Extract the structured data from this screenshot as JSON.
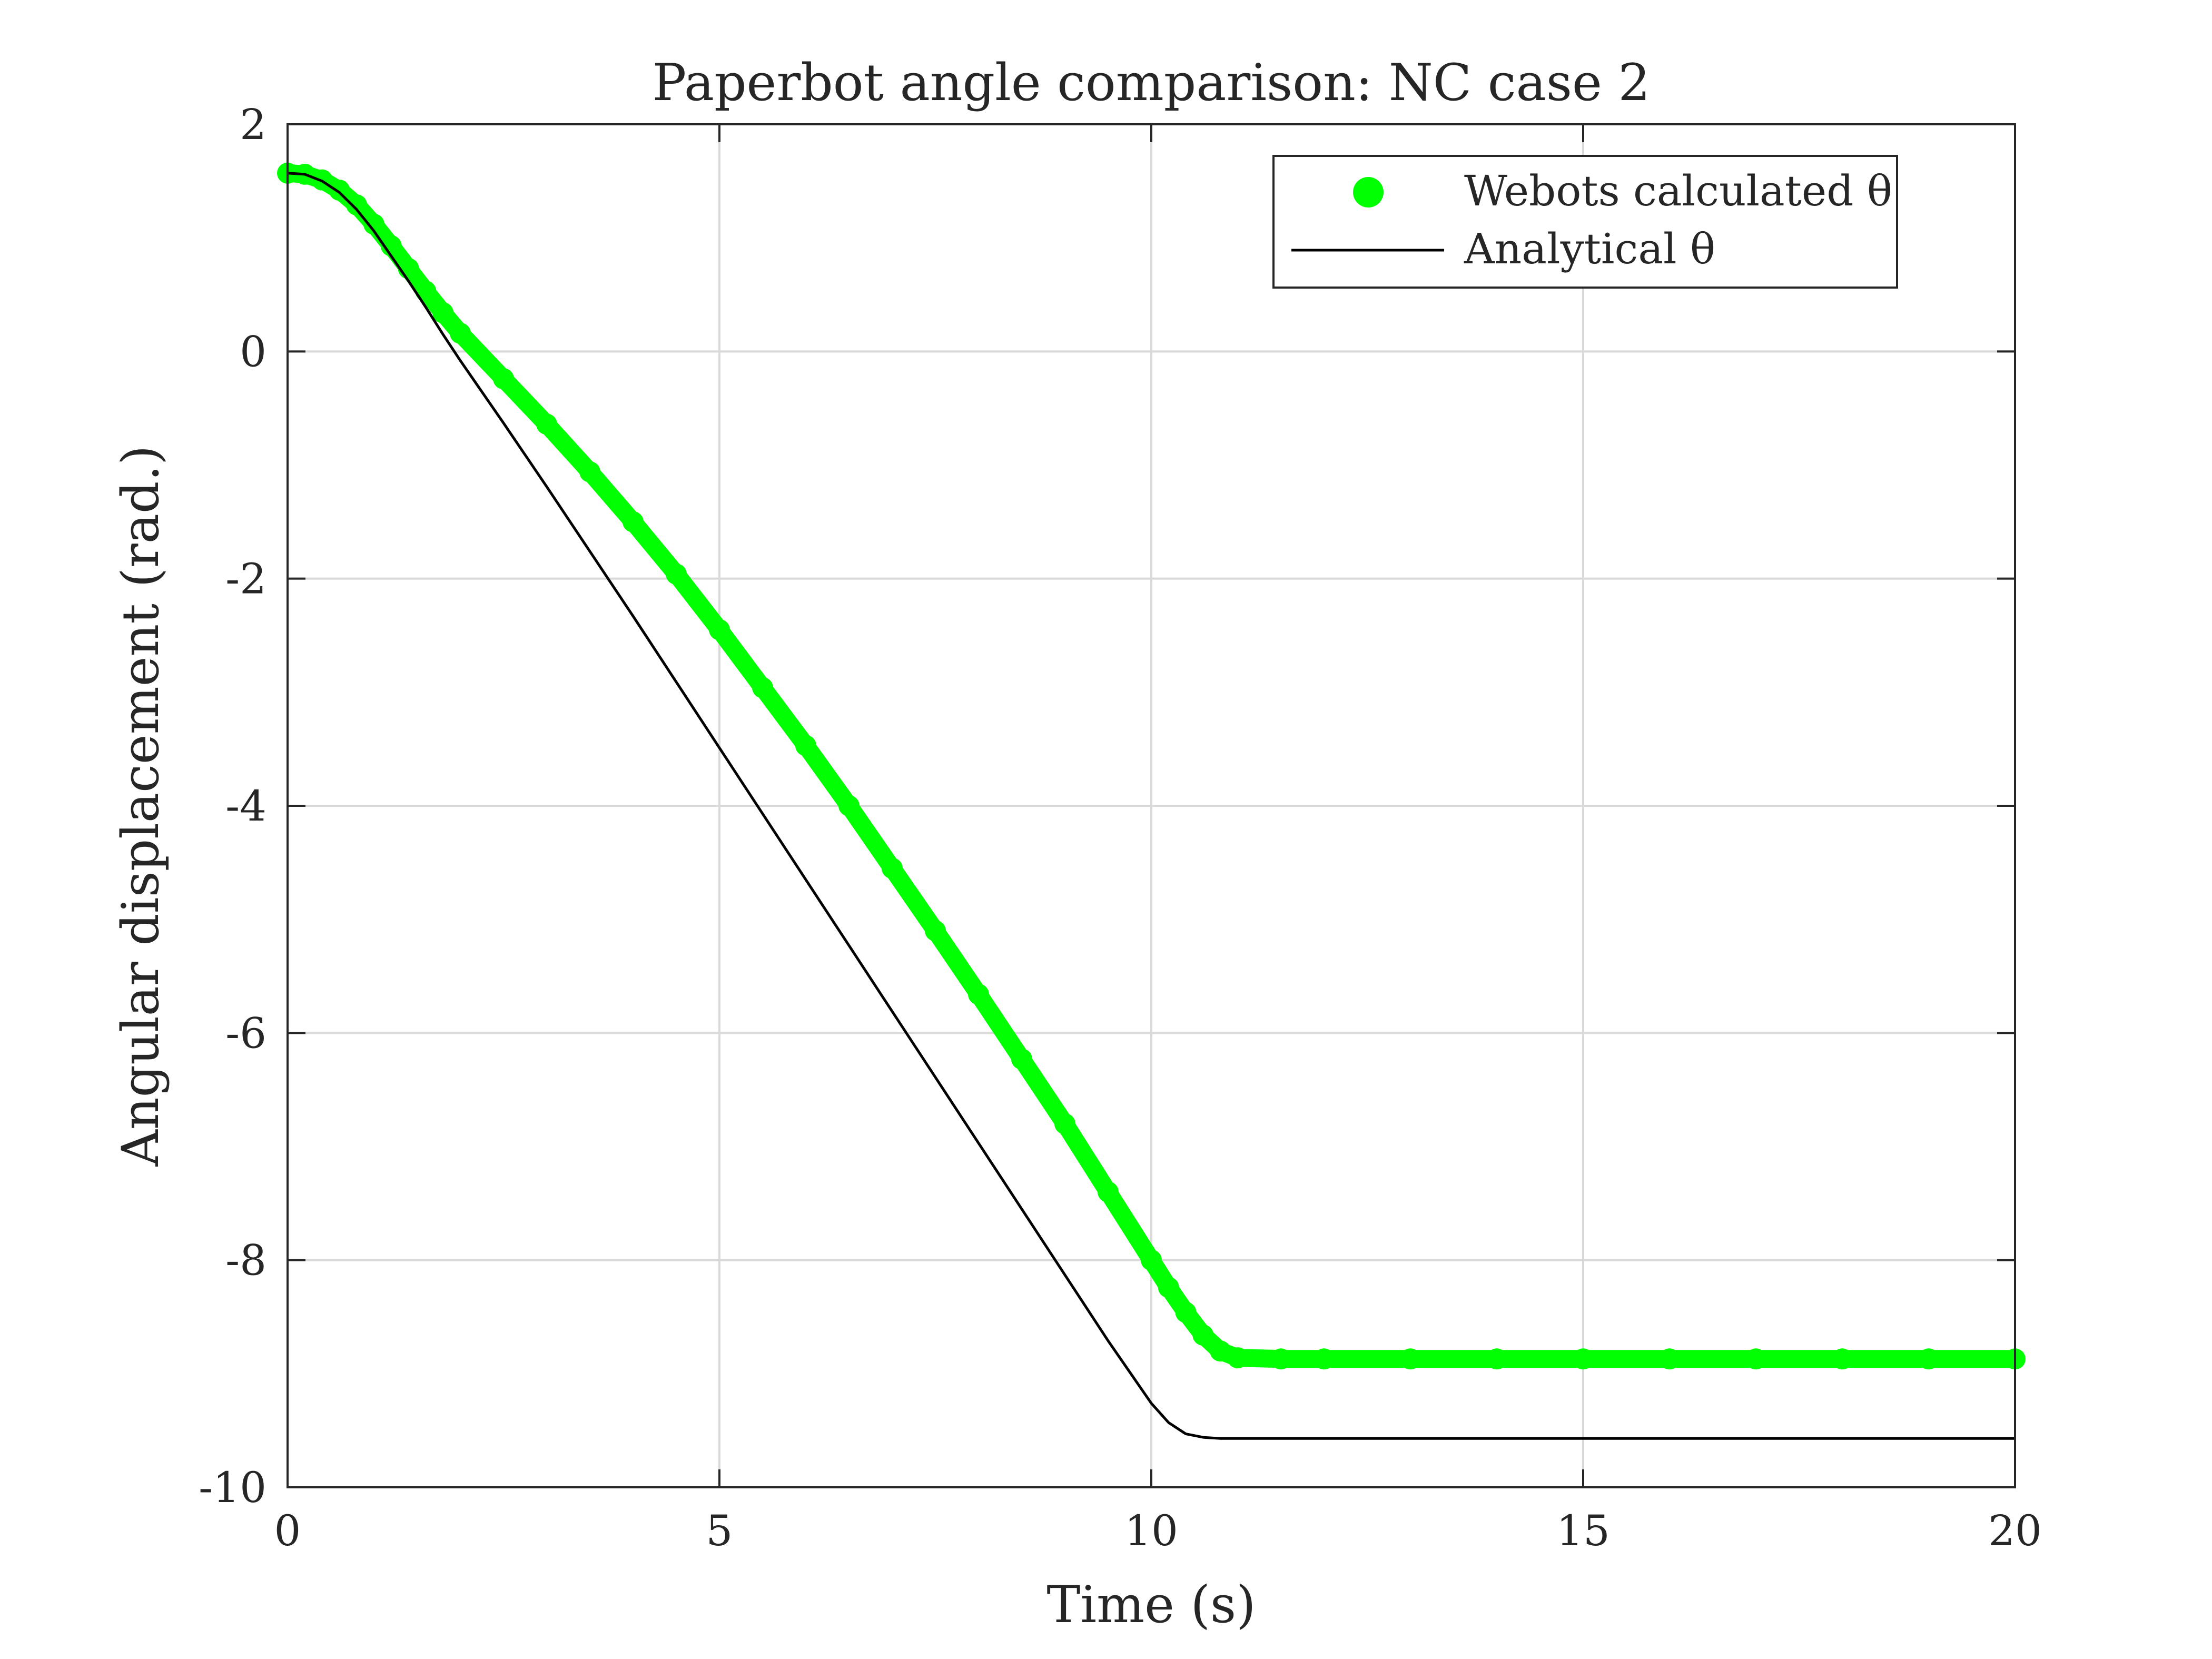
{
  "chart_data": {
    "type": "line",
    "title": "Paperbot angle comparison: NC case 2",
    "xlabel": "Time (s)",
    "ylabel": "Angular displacement (rad.)",
    "xlim": [
      0,
      20
    ],
    "ylim": [
      -10,
      2
    ],
    "xticks": [
      0,
      5,
      10,
      15,
      20
    ],
    "yticks": [
      -10,
      -8,
      -6,
      -4,
      -2,
      0,
      2
    ],
    "xtick_labels": [
      "0",
      "5",
      "10",
      "15",
      "20"
    ],
    "ytick_labels": [
      "-10",
      "-8",
      "-6",
      "-4",
      "-2",
      "0",
      "2"
    ],
    "grid": true,
    "legend_position": "top-right",
    "colors": {
      "webots": "#00ff00",
      "analytical": "#000000",
      "axis": "#262626",
      "grid": "#d9d9d9"
    },
    "series": [
      {
        "name": "Webots calculated θ",
        "style": "marker",
        "x": [
          0,
          0.2,
          0.4,
          0.6,
          0.8,
          1.0,
          1.2,
          1.4,
          1.6,
          1.8,
          2.0,
          2.5,
          3.0,
          3.5,
          4.0,
          4.5,
          5.0,
          5.5,
          6.0,
          6.5,
          7.0,
          7.5,
          8.0,
          8.5,
          9.0,
          9.5,
          10.0,
          10.2,
          10.4,
          10.6,
          10.8,
          11.0,
          11.5,
          12.0,
          13.0,
          14.0,
          15.0,
          16.0,
          17.0,
          18.0,
          19.0,
          20.0
        ],
        "y": [
          1.57,
          1.56,
          1.51,
          1.42,
          1.29,
          1.12,
          0.93,
          0.73,
          0.53,
          0.34,
          0.16,
          -0.24,
          -0.64,
          -1.06,
          -1.5,
          -1.96,
          -2.45,
          -2.96,
          -3.47,
          -4.0,
          -4.55,
          -5.1,
          -5.66,
          -6.23,
          -6.8,
          -7.4,
          -8.0,
          -8.24,
          -8.46,
          -8.66,
          -8.8,
          -8.86,
          -8.87,
          -8.87,
          -8.87,
          -8.87,
          -8.87,
          -8.87,
          -8.87,
          -8.87,
          -8.87,
          -8.87
        ]
      },
      {
        "name": "Analytical θ",
        "style": "line",
        "x": [
          0,
          0.2,
          0.4,
          0.6,
          0.8,
          1.0,
          1.2,
          1.4,
          1.6,
          1.8,
          2.0,
          2.5,
          3.0,
          3.5,
          4.0,
          4.5,
          5.0,
          5.5,
          6.0,
          6.5,
          7.0,
          7.5,
          8.0,
          8.5,
          9.0,
          9.5,
          10.0,
          10.2,
          10.4,
          10.6,
          10.8,
          11.0,
          12.0,
          13.0,
          14.0,
          15.0,
          16.0,
          17.0,
          18.0,
          19.0,
          20.0
        ],
        "y": [
          1.57,
          1.56,
          1.5,
          1.4,
          1.25,
          1.06,
          0.84,
          0.62,
          0.39,
          0.15,
          -0.08,
          -0.63,
          -1.19,
          -1.76,
          -2.33,
          -2.91,
          -3.49,
          -4.07,
          -4.65,
          -5.23,
          -5.81,
          -6.39,
          -6.97,
          -7.55,
          -8.13,
          -8.71,
          -9.26,
          -9.43,
          -9.53,
          -9.56,
          -9.57,
          -9.57,
          -9.57,
          -9.57,
          -9.57,
          -9.57,
          -9.57,
          -9.57,
          -9.57,
          -9.57,
          -9.57
        ]
      }
    ]
  }
}
